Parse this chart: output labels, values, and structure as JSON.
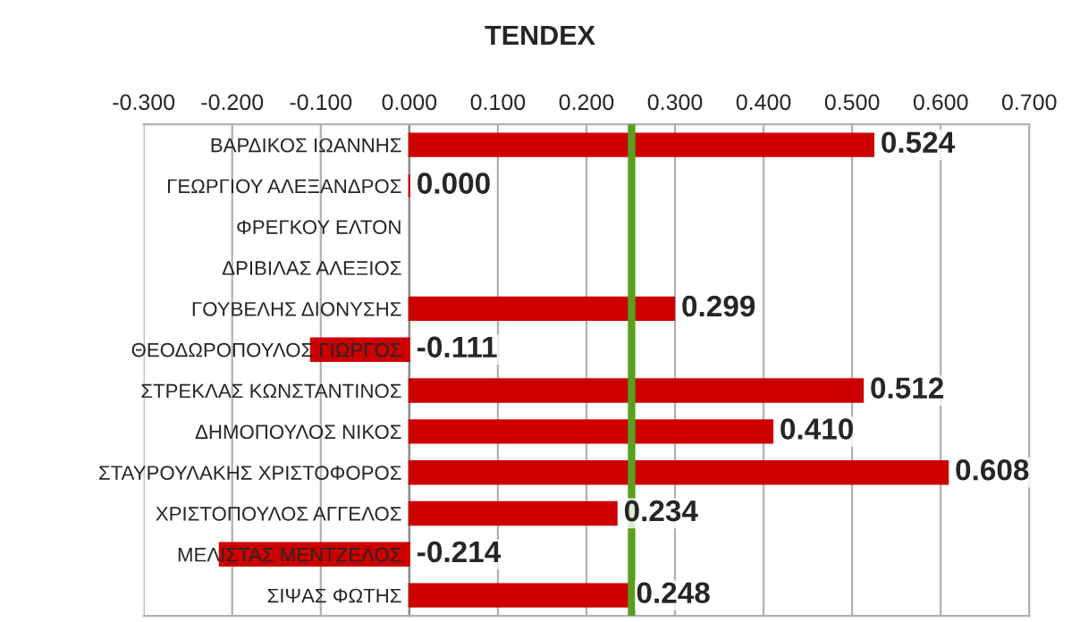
{
  "chart_data": {
    "type": "bar",
    "orientation": "horizontal",
    "title": "TENDEX",
    "categories": [
      "ΒΑΡΔΙΚΟΣ ΙΩΑΝΝΗΣ",
      "ΓΕΩΡΓΙΟΥ ΑΛΕΞΑΝΔΡΟΣ",
      "ΦΡΕΓΚΟΥ ΕΛΤΟΝ",
      "ΔΡΙΒΙΛΑΣ ΑΛΕΞΙΟΣ",
      "ΓΟΥΒΕΛΗΣ ΔΙΟΝΥΣΗΣ",
      "ΘΕΟΔΩΡΟΠΟΥΛΟΣ ΓΙΩΡΓΟΣ",
      "ΣΤΡΕΚΛΑΣ ΚΩΝΣΤΑΝΤΙΝΟΣ",
      "ΔΗΜΟΠΟΥΛΟΣ ΝΙΚΟΣ",
      "ΣΤΑΥΡΟΥΛΑΚΗΣ ΧΡΙΣΤΟΦΟΡΟΣ",
      "ΧΡΙΣΤΟΠΟΥΛΟΣ ΑΓΓΕΛΟΣ",
      "ΜΕΛΙΣΤΑΣ ΜΕΝΤΖΕΛΟΣ",
      "ΣΙΨΑΣ ΦΩΤΗΣ"
    ],
    "values": [
      0.524,
      0.0,
      null,
      null,
      0.299,
      -0.111,
      0.512,
      0.41,
      0.608,
      0.234,
      -0.214,
      0.248
    ],
    "value_labels": [
      "0.524",
      "0.000",
      null,
      null,
      "0.299",
      "-0.111",
      "0.512",
      "0.410",
      "0.608",
      "0.234",
      "-0.214",
      "0.248"
    ],
    "color": "#cc0000",
    "xlim": [
      -0.3,
      0.7
    ],
    "xticks": [
      {
        "value": -0.3,
        "label": "-0.300"
      },
      {
        "value": -0.2,
        "label": "-0.200"
      },
      {
        "value": -0.1,
        "label": "-0.100"
      },
      {
        "value": 0.0,
        "label": "0.000"
      },
      {
        "value": 0.1,
        "label": "0.100"
      },
      {
        "value": 0.2,
        "label": "0.200"
      },
      {
        "value": 0.3,
        "label": "0.300"
      },
      {
        "value": 0.4,
        "label": "0.400"
      },
      {
        "value": 0.5,
        "label": "0.500"
      },
      {
        "value": 0.6,
        "label": "0.600"
      },
      {
        "value": 0.7,
        "label": "0.700"
      }
    ],
    "ref_lines": [
      {
        "axis": "x",
        "value": 0.251,
        "color": "#5a9e1f"
      }
    ],
    "grid": "x"
  }
}
